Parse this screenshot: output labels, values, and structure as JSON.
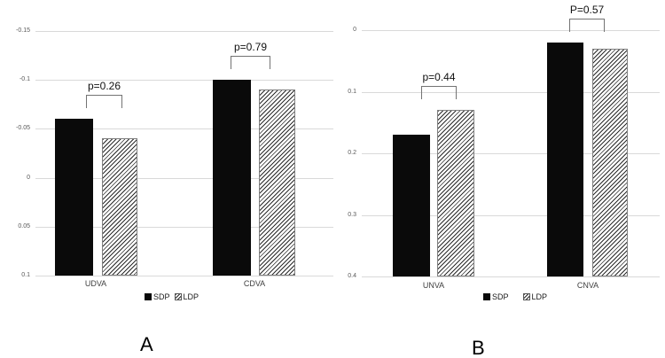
{
  "chart_data": [
    {
      "panel": "A",
      "type": "bar",
      "categories": [
        "UDVA",
        "CDVA"
      ],
      "series": [
        {
          "name": "SDP",
          "style": "solid-black",
          "values": [
            -0.06,
            -0.1
          ]
        },
        {
          "name": "LDP",
          "style": "diagonal-hatch",
          "values": [
            -0.04,
            -0.09
          ]
        }
      ],
      "p_values": [
        "p=0.26",
        "p=0.79"
      ],
      "y_ticks": [
        "-0.15",
        "-0.1",
        "-0.05",
        "0",
        "0.05",
        "0.1"
      ],
      "ylim_top": -0.15,
      "ylim_bottom": 0.1,
      "grid": true,
      "legend": [
        "SDP",
        "LDP"
      ],
      "legend_position": "bottom",
      "title": "",
      "xlabel": "",
      "ylabel": ""
    },
    {
      "panel": "B",
      "type": "bar",
      "categories": [
        "UNVA",
        "CNVA"
      ],
      "series": [
        {
          "name": "SDP",
          "style": "solid-black",
          "values": [
            0.17,
            0.02
          ]
        },
        {
          "name": "LDP",
          "style": "diagonal-hatch",
          "values": [
            0.13,
            0.03
          ]
        }
      ],
      "p_values": [
        "p=0.44",
        "P=0.57"
      ],
      "y_ticks": [
        "0",
        "0.1",
        "0.2",
        "0.3",
        "0.4"
      ],
      "ylim_top": 0,
      "ylim_bottom": 0.4,
      "grid": true,
      "legend": [
        "SDP",
        "LDP"
      ],
      "legend_position": "bottom",
      "title": "",
      "xlabel": "",
      "ylabel": ""
    }
  ],
  "colors": {
    "bar_solid": "#0a0a0a",
    "hatch_stroke": "#2b2b2b",
    "gridline": "#d9d9d9",
    "bracket": "#737373",
    "tick_text": "#595959"
  }
}
